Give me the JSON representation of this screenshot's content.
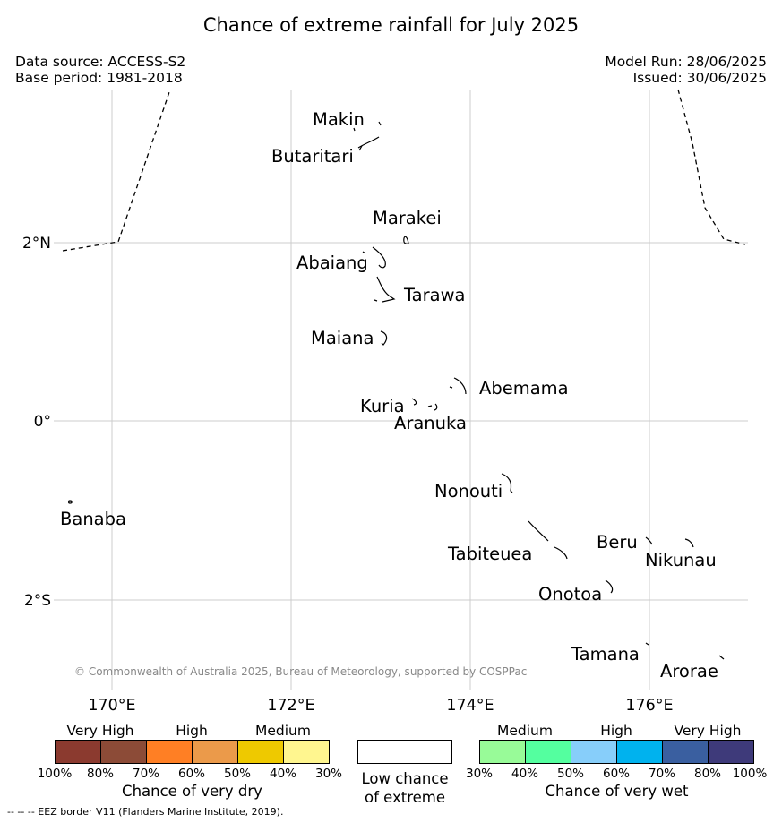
{
  "title": "Chance of extreme rainfall for July 2025",
  "meta_left": {
    "data_source": "Data source: ACCESS-S2",
    "base_period": "Base period: 1981-2018"
  },
  "meta_right": {
    "model_run": "Model Run: 28/06/2025",
    "issued": "Issued: 30/06/2025"
  },
  "map": {
    "lat_labels": [
      "2°N",
      "0°",
      "2°S"
    ],
    "lon_labels": [
      "170°E",
      "172°E",
      "174°E",
      "176°E"
    ],
    "islands": [
      "Makin",
      "Butaritari",
      "Marakei",
      "Abaiang",
      "Tarawa",
      "Maiana",
      "Abemama",
      "Kuria",
      "Aranuka",
      "Nonouti",
      "Banaba",
      "Tabiteuea",
      "Beru",
      "Nikunau",
      "Onotoa",
      "Tamana",
      "Arorae"
    ],
    "copyright": "© Commonwealth of Australia 2025, Bureau of Meteorology, supported by COSPPac"
  },
  "legend": {
    "dry": {
      "categories": [
        "Very High",
        "High",
        "Medium"
      ],
      "colors": [
        "#8b3a2f",
        "#8c4b37",
        "#ff7f24",
        "#eb9a4a",
        "#eec900",
        "#fff68f"
      ],
      "ticks": [
        "100%",
        "80%",
        "70%",
        "60%",
        "50%",
        "40%",
        "30%"
      ],
      "title": "Chance of very dry"
    },
    "low": {
      "color": "#ffffff",
      "title_line1": "Low chance",
      "title_line2": "of extreme"
    },
    "wet": {
      "categories": [
        "Medium",
        "High",
        "Very High"
      ],
      "colors": [
        "#98fb98",
        "#54ff9f",
        "#87cefa",
        "#00b2ee",
        "#3a5fa0",
        "#3e3a7a"
      ],
      "ticks": [
        "30%",
        "40%",
        "50%",
        "60%",
        "70%",
        "80%",
        "100%"
      ],
      "title": "Chance of very wet"
    }
  },
  "footnote": "--  --  -- EEZ border V11 (Flanders Marine Institute, 2019)."
}
